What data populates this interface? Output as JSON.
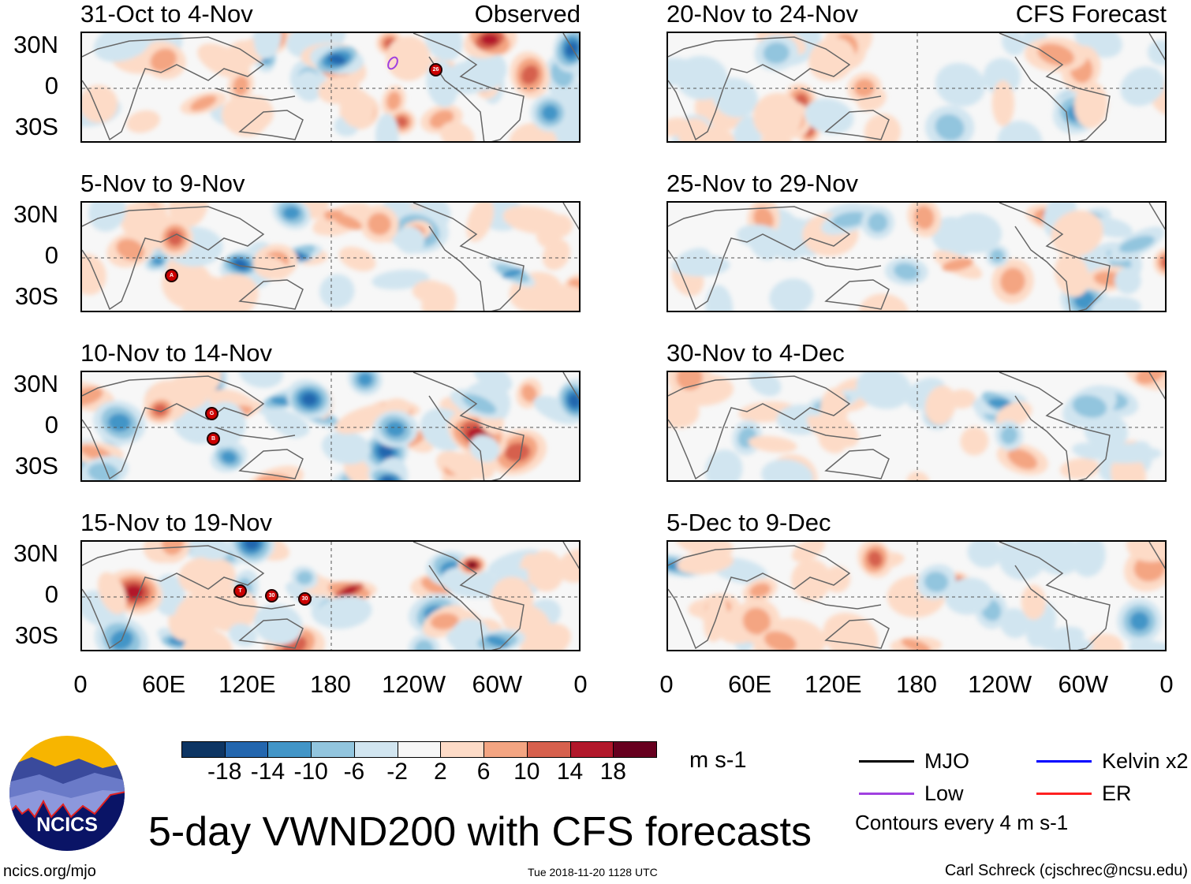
{
  "panels": [
    {
      "title": "31-Oct to 4-Nov",
      "tag": "Observed",
      "side": "left",
      "row": 0,
      "seed": 11,
      "storms": [
        "26"
      ],
      "low_contour": true
    },
    {
      "title": "5-Nov to 9-Nov",
      "tag": "",
      "side": "left",
      "row": 1,
      "seed": 23,
      "storms": [
        "A"
      ]
    },
    {
      "title": "10-Nov to 14-Nov",
      "tag": "",
      "side": "left",
      "row": 2,
      "seed": 37,
      "storms": [
        "G",
        "B"
      ]
    },
    {
      "title": "15-Nov to 19-Nov",
      "tag": "",
      "side": "left",
      "row": 3,
      "seed": 41,
      "storms": [
        "T",
        "30",
        "30"
      ]
    },
    {
      "title": "20-Nov to 24-Nov",
      "tag": "CFS Forecast",
      "side": "right",
      "row": 0,
      "seed": 53,
      "storms": []
    },
    {
      "title": "25-Nov to 29-Nov",
      "tag": "",
      "side": "right",
      "row": 1,
      "seed": 67,
      "storms": []
    },
    {
      "title": "30-Nov to 4-Dec",
      "tag": "",
      "side": "right",
      "row": 2,
      "seed": 71,
      "storms": []
    },
    {
      "title": "5-Dec to 9-Dec",
      "tag": "",
      "side": "right",
      "row": 3,
      "seed": 89,
      "storms": []
    }
  ],
  "y_ticks": [
    "30N",
    "0",
    "30S"
  ],
  "x_ticks": [
    "0",
    "60E",
    "120E",
    "180",
    "120W",
    "60W",
    "0"
  ],
  "colorbar": {
    "colors": [
      "#0d3563",
      "#2366ae",
      "#4295c7",
      "#92c5de",
      "#d1e5f0",
      "#f7f7f7",
      "#fddbc7",
      "#f4a582",
      "#d6604d",
      "#b2182b",
      "#67001f"
    ],
    "labels": [
      "-18",
      "-14",
      "-10",
      "-6",
      "-2",
      "2",
      "6",
      "10",
      "14",
      "18"
    ],
    "units": "m s-1"
  },
  "legend": {
    "items": [
      {
        "label": "MJO",
        "color": "#000000"
      },
      {
        "label": "Kelvin x2",
        "color": "#0000ff"
      },
      {
        "label": "Low",
        "color": "#a040e0"
      },
      {
        "label": "ER",
        "color": "#ff2020"
      }
    ],
    "note": "Contours every 4 m s-1"
  },
  "logo_text": "NCICS",
  "title": "5-day VWND200 with CFS forecasts",
  "footer": {
    "url": "ncics.org/mjo",
    "timestamp": "Tue 2018-11-20 1128 UTC",
    "author": "Carl Schreck (cjschrec@ncsu.edu)"
  }
}
